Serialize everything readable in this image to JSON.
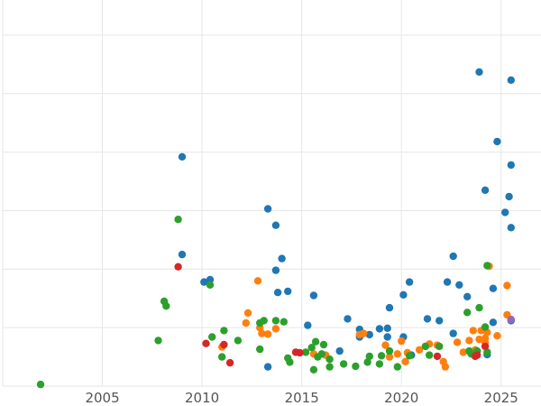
{
  "chart_data": {
    "type": "scatter",
    "title": "",
    "xlabel": "",
    "ylabel": "",
    "xlim": [
      2000,
      2027
    ],
    "ylim": [
      0,
      6.6
    ],
    "grid": true,
    "legend": "none",
    "x_ticks": [
      {
        "value": 2005,
        "label": "2005"
      },
      {
        "value": 2010,
        "label": "2010"
      },
      {
        "value": 2015,
        "label": "2015"
      },
      {
        "value": 2020,
        "label": "2020"
      },
      {
        "value": 2025,
        "label": "2025"
      }
    ],
    "y_grid": [
      0,
      1,
      2,
      3,
      4,
      5,
      6
    ],
    "series": [
      {
        "color": "#1f77b4",
        "points": [
          [
            2009.0,
            3.92
          ],
          [
            2009.0,
            2.25
          ],
          [
            2010.1,
            1.78
          ],
          [
            2010.4,
            1.82
          ],
          [
            2013.3,
            3.03
          ],
          [
            2013.3,
            0.33
          ],
          [
            2013.7,
            2.75
          ],
          [
            2013.7,
            1.98
          ],
          [
            2013.8,
            1.6
          ],
          [
            2014.0,
            2.18
          ],
          [
            2014.3,
            1.62
          ],
          [
            2015.3,
            1.04
          ],
          [
            2015.6,
            1.55
          ],
          [
            2016.9,
            0.6
          ],
          [
            2017.3,
            1.15
          ],
          [
            2017.9,
            0.97
          ],
          [
            2017.9,
            0.84
          ],
          [
            2018.4,
            0.88
          ],
          [
            2018.9,
            0.98
          ],
          [
            2019.3,
            0.99
          ],
          [
            2019.3,
            0.84
          ],
          [
            2019.4,
            1.34
          ],
          [
            2020.1,
            1.56
          ],
          [
            2020.1,
            0.84
          ],
          [
            2020.4,
            1.78
          ],
          [
            2020.5,
            0.53
          ],
          [
            2021.3,
            1.15
          ],
          [
            2021.9,
            1.12
          ],
          [
            2022.3,
            1.78
          ],
          [
            2022.6,
            2.22
          ],
          [
            2022.6,
            0.9
          ],
          [
            2022.9,
            1.73
          ],
          [
            2023.3,
            1.53
          ],
          [
            2023.6,
            0.55
          ],
          [
            2023.9,
            5.37
          ],
          [
            2024.2,
            3.35
          ],
          [
            2024.3,
            0.54
          ],
          [
            2024.6,
            1.67
          ],
          [
            2024.6,
            1.09
          ],
          [
            2024.8,
            4.18
          ],
          [
            2025.2,
            2.97
          ],
          [
            2025.4,
            3.24
          ],
          [
            2025.5,
            3.78
          ],
          [
            2025.5,
            2.71
          ],
          [
            2025.5,
            1.12
          ],
          [
            2025.5,
            5.23
          ]
        ]
      },
      {
        "color": "#ff7f0e",
        "points": [
          [
            2011.0,
            0.67
          ],
          [
            2012.2,
            1.08
          ],
          [
            2012.3,
            1.25
          ],
          [
            2012.8,
            1.8
          ],
          [
            2012.9,
            1.0
          ],
          [
            2013.0,
            0.9
          ],
          [
            2013.3,
            0.89
          ],
          [
            2013.7,
            0.98
          ],
          [
            2015.6,
            0.55
          ],
          [
            2016.2,
            0.53
          ],
          [
            2017.9,
            0.88
          ],
          [
            2018.1,
            0.9
          ],
          [
            2019.2,
            0.7
          ],
          [
            2019.4,
            0.5
          ],
          [
            2019.8,
            0.55
          ],
          [
            2020.0,
            0.77
          ],
          [
            2020.2,
            0.42
          ],
          [
            2020.3,
            0.57
          ],
          [
            2020.9,
            0.62
          ],
          [
            2021.4,
            0.72
          ],
          [
            2021.8,
            0.7
          ],
          [
            2022.1,
            0.42
          ],
          [
            2022.2,
            0.33
          ],
          [
            2022.8,
            0.75
          ],
          [
            2023.1,
            0.58
          ],
          [
            2023.4,
            0.78
          ],
          [
            2023.6,
            0.95
          ],
          [
            2023.7,
            0.62
          ],
          [
            2023.9,
            0.8
          ],
          [
            2024.0,
            0.95
          ],
          [
            2024.2,
            0.75
          ],
          [
            2024.2,
            0.82
          ],
          [
            2024.3,
            0.92
          ],
          [
            2024.4,
            2.05
          ],
          [
            2024.8,
            0.86
          ],
          [
            2025.3,
            1.72
          ],
          [
            2025.3,
            1.22
          ]
        ]
      },
      {
        "color": "#2ca02c",
        "points": [
          [
            2001.9,
            0.03
          ],
          [
            2007.8,
            0.78
          ],
          [
            2008.1,
            1.45
          ],
          [
            2008.2,
            1.37
          ],
          [
            2008.8,
            2.85
          ],
          [
            2010.4,
            1.73
          ],
          [
            2010.5,
            0.84
          ],
          [
            2011.0,
            0.5
          ],
          [
            2011.1,
            0.95
          ],
          [
            2011.8,
            0.78
          ],
          [
            2012.9,
            1.08
          ],
          [
            2012.9,
            0.63
          ],
          [
            2013.1,
            1.12
          ],
          [
            2013.7,
            1.12
          ],
          [
            2014.1,
            1.1
          ],
          [
            2014.3,
            0.48
          ],
          [
            2014.4,
            0.41
          ],
          [
            2015.2,
            0.58
          ],
          [
            2015.5,
            0.66
          ],
          [
            2015.6,
            0.28
          ],
          [
            2015.7,
            0.76
          ],
          [
            2015.8,
            0.5
          ],
          [
            2016.0,
            0.55
          ],
          [
            2016.1,
            0.71
          ],
          [
            2016.4,
            0.33
          ],
          [
            2016.4,
            0.46
          ],
          [
            2017.1,
            0.38
          ],
          [
            2017.7,
            0.34
          ],
          [
            2018.3,
            0.41
          ],
          [
            2018.4,
            0.51
          ],
          [
            2018.9,
            0.38
          ],
          [
            2019.0,
            0.52
          ],
          [
            2019.4,
            0.6
          ],
          [
            2019.8,
            0.33
          ],
          [
            2020.4,
            0.52
          ],
          [
            2021.2,
            0.68
          ],
          [
            2021.4,
            0.53
          ],
          [
            2021.9,
            0.68
          ],
          [
            2023.3,
            1.26
          ],
          [
            2023.4,
            0.6
          ],
          [
            2023.5,
            0.55
          ],
          [
            2023.8,
            0.6
          ],
          [
            2023.9,
            1.34
          ],
          [
            2024.2,
            1.01
          ],
          [
            2024.3,
            0.58
          ],
          [
            2024.3,
            2.06
          ]
        ]
      },
      {
        "color": "#d62728",
        "points": [
          [
            2008.8,
            2.04
          ],
          [
            2010.2,
            0.73
          ],
          [
            2011.1,
            0.71
          ],
          [
            2011.4,
            0.4
          ],
          [
            2014.7,
            0.58
          ],
          [
            2014.9,
            0.57
          ],
          [
            2021.8,
            0.51
          ],
          [
            2023.7,
            0.51
          ],
          [
            2023.8,
            0.53
          ],
          [
            2024.2,
            0.68
          ]
        ]
      },
      {
        "color": "#9467bd",
        "points": [
          [
            2025.5,
            1.14
          ]
        ]
      }
    ]
  }
}
